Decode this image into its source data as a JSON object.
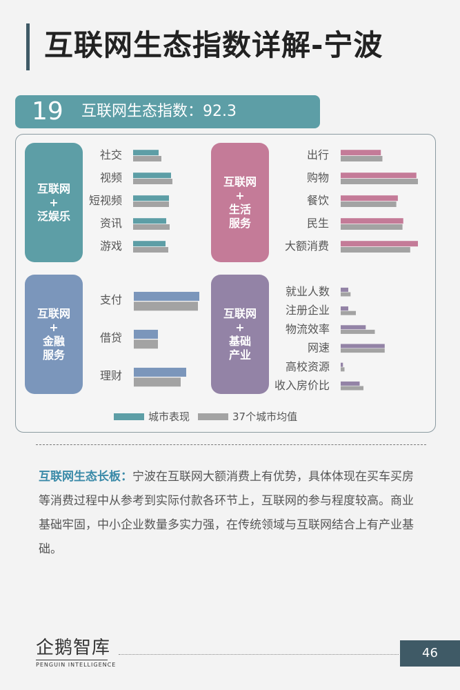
{
  "title": "互联网生态指数详解-宁波",
  "rank": {
    "number": "19",
    "label": "互联网生态指数：92.3"
  },
  "colors": {
    "city": "#5d9ea6",
    "average": "#a3a3a3",
    "entertainment": "#5d9ea6",
    "life": "#c47b98",
    "finance": "#7b96bb",
    "infrastructure": "#9383a6",
    "accent": "#3a8aa8"
  },
  "categories": {
    "entertainment": [
      "互联网",
      "+",
      "泛娱乐"
    ],
    "life": [
      "互联网",
      "+",
      "生活",
      "服务"
    ],
    "finance": [
      "互联网",
      "+",
      "金融",
      "服务"
    ],
    "infrastructure": [
      "互联网",
      "+",
      "基础",
      "产业"
    ]
  },
  "chart_data": [
    {
      "type": "bar",
      "orientation": "horizontal",
      "group": "entertainment",
      "categories": [
        "社交",
        "视频",
        "短视频",
        "资讯",
        "游戏"
      ],
      "series": [
        {
          "name": "城市表现",
          "values": [
            0.37,
            0.55,
            0.52,
            0.48,
            0.47
          ]
        },
        {
          "name": "37个城市均值",
          "values": [
            0.41,
            0.57,
            0.52,
            0.53,
            0.51
          ]
        }
      ],
      "xlim": [
        0,
        1
      ]
    },
    {
      "type": "bar",
      "orientation": "horizontal",
      "group": "life",
      "categories": [
        "出行",
        "购物",
        "餐饮",
        "民生",
        "大额消费"
      ],
      "series": [
        {
          "name": "城市表现",
          "values": [
            0.52,
            0.98,
            0.74,
            0.81,
            1.0
          ]
        },
        {
          "name": "37个城市均值",
          "values": [
            0.54,
            1.0,
            0.72,
            0.8,
            0.9
          ]
        }
      ],
      "xlim": [
        0,
        1
      ]
    },
    {
      "type": "bar",
      "orientation": "horizontal",
      "group": "finance",
      "categories": [
        "支付",
        "借贷",
        "理财"
      ],
      "series": [
        {
          "name": "城市表现",
          "values": [
            0.95,
            0.35,
            0.76
          ]
        },
        {
          "name": "37个城市均值",
          "values": [
            0.93,
            0.35,
            0.68
          ]
        }
      ],
      "xlim": [
        0,
        1
      ]
    },
    {
      "type": "bar",
      "orientation": "horizontal",
      "group": "infrastructure",
      "categories": [
        "就业人数",
        "注册企业",
        "物流效率",
        "网速",
        "高校资源",
        "收入房价比"
      ],
      "series": [
        {
          "name": "城市表现",
          "values": [
            0.1,
            0.1,
            0.33,
            0.58,
            0.03,
            0.25
          ]
        },
        {
          "name": "37个城市均值",
          "values": [
            0.13,
            0.2,
            0.45,
            0.58,
            0.05,
            0.3
          ]
        }
      ],
      "xlim": [
        0,
        1
      ]
    }
  ],
  "legend": {
    "city": "城市表现",
    "average": "37个城市均值"
  },
  "description": {
    "highlight": "互联网生态长板：",
    "text": "宁波在互联网大额消费上有优势，具体体现在买车买房等消费过程中从参考到实际付款各环节上，互联网的参与程度较高。商业基础牢固，中小企业数量多实力强，在传统领域与互联网结合上有产业基础。"
  },
  "footer": {
    "logo_cn": "企鹅智库",
    "logo_en": "PENGUIN INTELLIGENCE",
    "page": "46"
  }
}
